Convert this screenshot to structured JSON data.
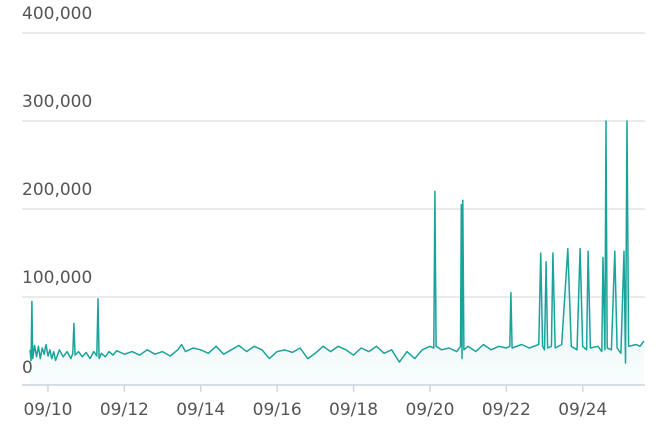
{
  "chart_data": {
    "type": "line",
    "color": "#1aa39b",
    "grid": true,
    "x": [
      9.53,
      9.56,
      9.58,
      9.6,
      9.65,
      9.7,
      9.75,
      9.8,
      9.85,
      9.9,
      9.95,
      10.0,
      10.05,
      10.1,
      10.15,
      10.2,
      10.3,
      10.4,
      10.5,
      10.6,
      10.65,
      10.68,
      10.71,
      10.8,
      10.9,
      11.0,
      11.1,
      11.2,
      11.28,
      11.31,
      11.34,
      11.4,
      11.5,
      11.6,
      11.7,
      11.8,
      12.0,
      12.2,
      12.4,
      12.6,
      12.8,
      13.0,
      13.2,
      13.4,
      13.5,
      13.6,
      13.8,
      14.0,
      14.2,
      14.4,
      14.6,
      14.8,
      15.0,
      15.2,
      15.4,
      15.6,
      15.8,
      16.0,
      16.2,
      16.4,
      16.6,
      16.8,
      17.0,
      17.2,
      17.4,
      17.6,
      17.8,
      18.0,
      18.2,
      18.4,
      18.6,
      18.8,
      19.0,
      19.2,
      19.4,
      19.6,
      19.8,
      20.0,
      20.1,
      20.13,
      20.16,
      20.3,
      20.5,
      20.7,
      20.8,
      20.82,
      20.84,
      20.86,
      20.89,
      21.0,
      21.2,
      21.4,
      21.6,
      21.8,
      22.0,
      22.09,
      22.12,
      22.15,
      22.4,
      22.6,
      22.85,
      22.9,
      22.95,
      23.0,
      23.04,
      23.08,
      23.18,
      23.22,
      23.28,
      23.45,
      23.61,
      23.7,
      23.85,
      23.93,
      24.0,
      24.1,
      24.14,
      24.2,
      24.4,
      24.5,
      24.53,
      24.58,
      24.61,
      24.64,
      24.75,
      24.84,
      24.9,
      25.0,
      25.08,
      25.12,
      25.16,
      25.2,
      25.4,
      25.5,
      25.6
    ],
    "values": [
      40000,
      28000,
      95000,
      30000,
      45000,
      32000,
      44000,
      30000,
      42000,
      35000,
      46000,
      33000,
      40000,
      30000,
      38000,
      28000,
      40000,
      32000,
      38000,
      30000,
      36000,
      70000,
      34000,
      38000,
      32000,
      37000,
      30000,
      38000,
      33000,
      98000,
      30000,
      36000,
      32000,
      38000,
      34000,
      39000,
      35000,
      38000,
      34000,
      40000,
      35000,
      38000,
      33000,
      40000,
      46000,
      38000,
      42000,
      40000,
      36000,
      44000,
      35000,
      40000,
      45000,
      38000,
      44000,
      40000,
      30000,
      38000,
      40000,
      37000,
      42000,
      30000,
      36000,
      44000,
      38000,
      44000,
      40000,
      34000,
      42000,
      38000,
      44000,
      36000,
      40000,
      26000,
      38000,
      30000,
      40000,
      44000,
      42000,
      220000,
      44000,
      40000,
      42000,
      38000,
      44000,
      205000,
      30000,
      210000,
      40000,
      44000,
      38000,
      46000,
      40000,
      44000,
      42000,
      44000,
      105000,
      42000,
      46000,
      42000,
      46000,
      150000,
      44000,
      40000,
      140000,
      42000,
      44000,
      150000,
      42000,
      46000,
      155000,
      44000,
      40000,
      155000,
      44000,
      40000,
      152000,
      42000,
      44000,
      38000,
      145000,
      40000,
      300000,
      42000,
      40000,
      152000,
      42000,
      36000,
      152000,
      25000,
      300000,
      44000,
      46000,
      44000,
      50000
    ],
    "xlim": [
      9.53,
      25.63
    ],
    "xticks": [
      {
        "value": 10,
        "label": "09/10"
      },
      {
        "value": 12,
        "label": "09/12"
      },
      {
        "value": 14,
        "label": "09/14"
      },
      {
        "value": 16,
        "label": "09/16"
      },
      {
        "value": 18,
        "label": "09/18"
      },
      {
        "value": 20,
        "label": "09/20"
      },
      {
        "value": 22,
        "label": "09/22"
      },
      {
        "value": 24,
        "label": "09/24"
      }
    ],
    "ylim": [
      0,
      400000
    ],
    "yticks": [
      0,
      {
        "value": 100000,
        "label": "100,000"
      },
      {
        "value": 200000,
        "label": "200,000"
      },
      {
        "value": 300000,
        "label": "300,000"
      },
      {
        "value": 400000,
        "label": "400,000"
      }
    ]
  }
}
